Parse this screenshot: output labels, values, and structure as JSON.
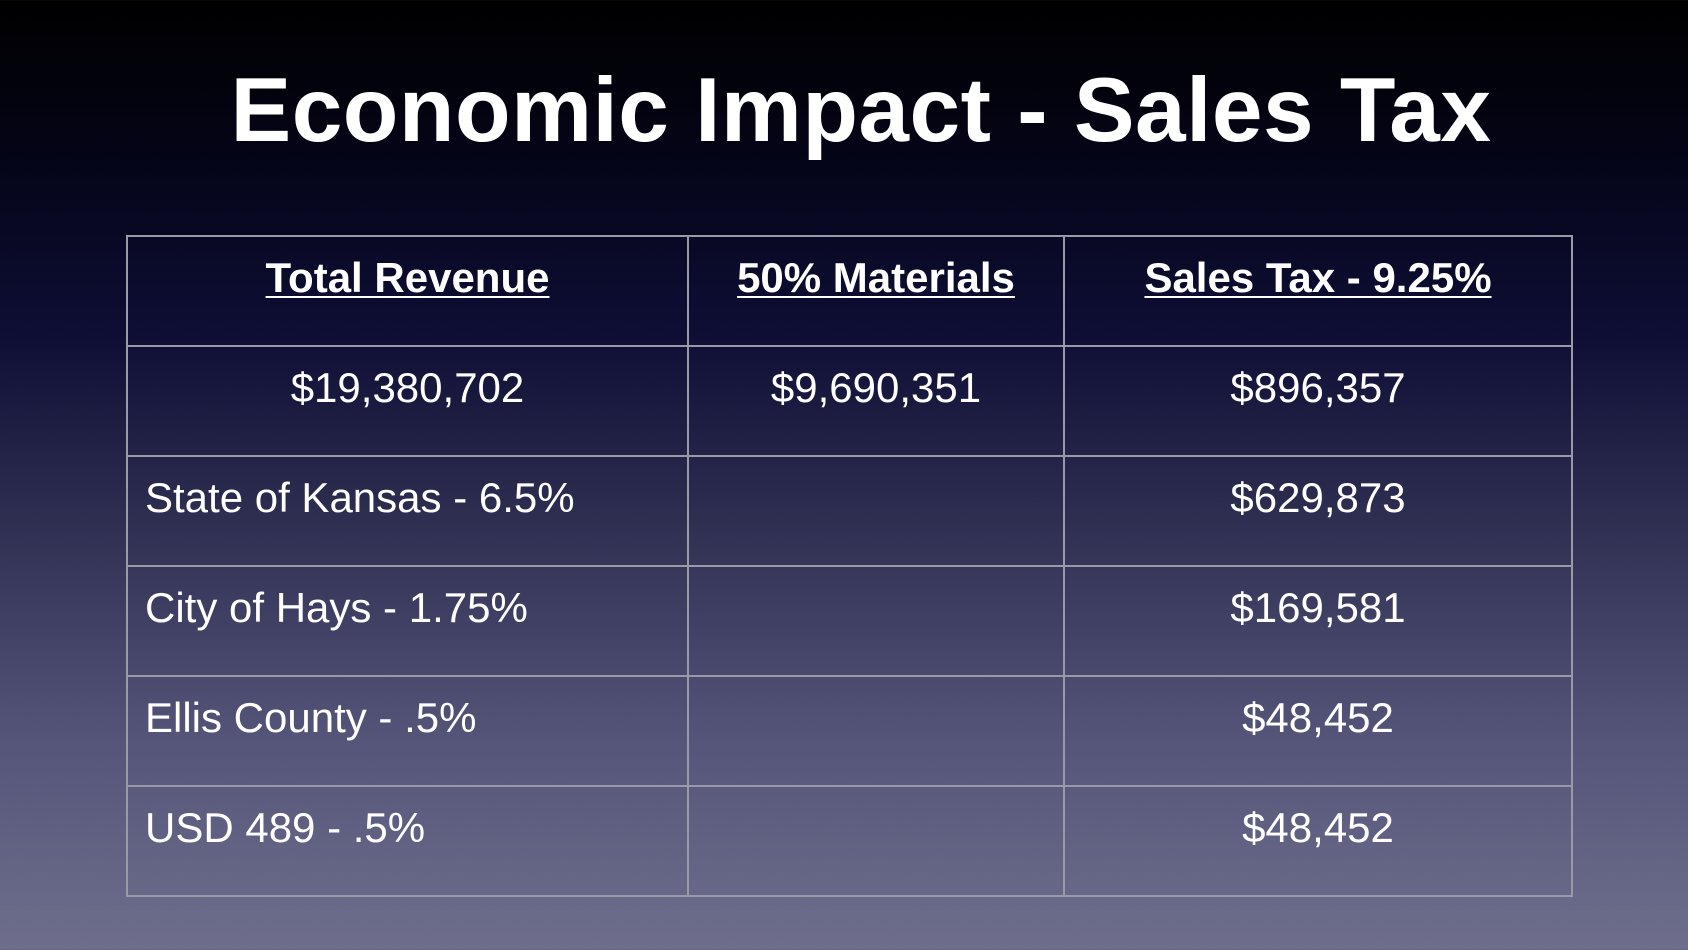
{
  "slide": {
    "title": "Economic Impact - Sales Tax"
  },
  "table": {
    "headers": [
      "Total Revenue",
      "50% Materials",
      "Sales Tax - 9.25%"
    ],
    "rows": [
      [
        "$19,380,702",
        "$9,690,351",
        "$896,357"
      ],
      [
        "State of Kansas - 6.5%",
        "",
        "$629,873"
      ],
      [
        "City of Hays - 1.75%",
        "",
        "$169,581"
      ],
      [
        "Ellis County - .5%",
        "",
        "$48,452"
      ],
      [
        "USD 489 - .5%",
        "",
        "$48,452"
      ]
    ]
  },
  "colors": {
    "background_top": "#000000",
    "background_bottom": "#6e6e8c",
    "text": "#ffffff",
    "grid": "#9a9aa6"
  }
}
